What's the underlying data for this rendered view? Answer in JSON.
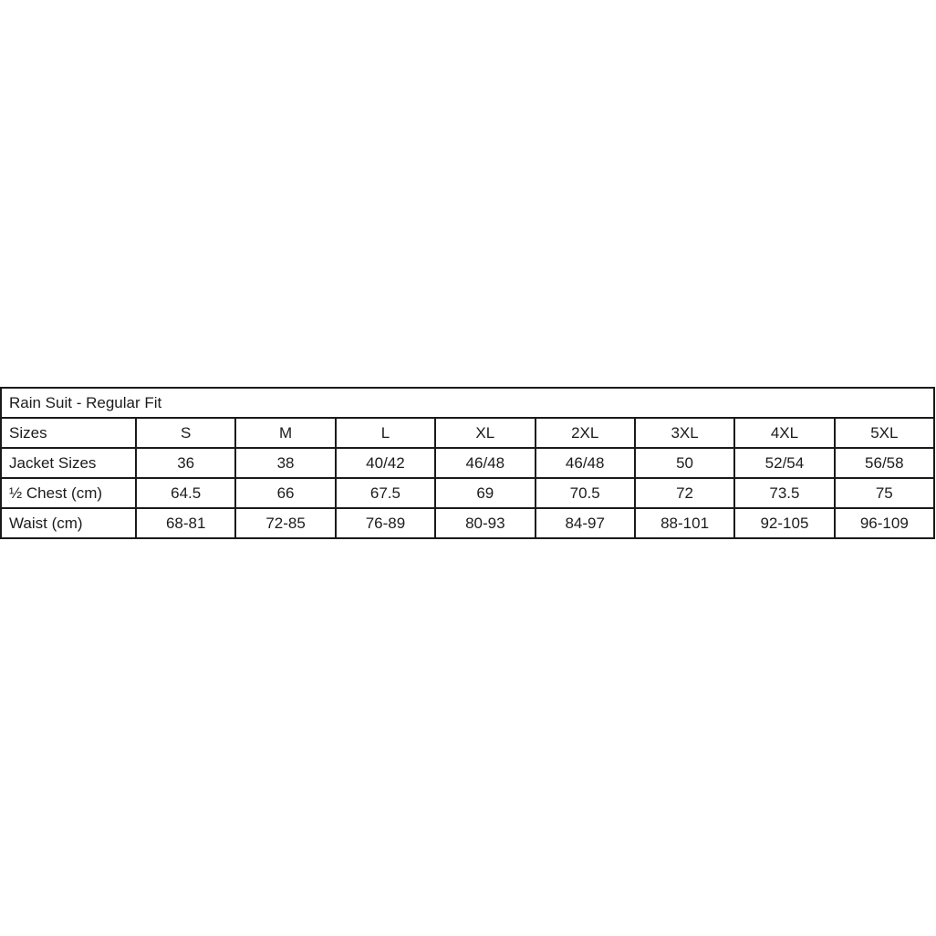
{
  "table": {
    "title": "Rain Suit - Regular Fit",
    "columns": [
      "Sizes",
      "S",
      "M",
      "L",
      "XL",
      "2XL",
      "3XL",
      "4XL",
      "5XL"
    ],
    "rows": [
      {
        "label": "Jacket Sizes",
        "values": [
          "36",
          "38",
          "40/42",
          "46/48",
          "46/48",
          "50",
          "52/54",
          "56/58"
        ]
      },
      {
        "label": "½ Chest (cm)",
        "values": [
          "64.5",
          "66",
          "67.5",
          "69",
          "70.5",
          "72",
          "73.5",
          "75"
        ]
      },
      {
        "label": "Waist (cm)",
        "values": [
          "68-81",
          "72-85",
          "76-89",
          "80-93",
          "84-97",
          "88-101",
          "92-105",
          "96-109"
        ]
      }
    ],
    "style": {
      "border_color": "#1a1a1a",
      "text_color": "#1c1c1c",
      "background": "#ffffff"
    }
  }
}
